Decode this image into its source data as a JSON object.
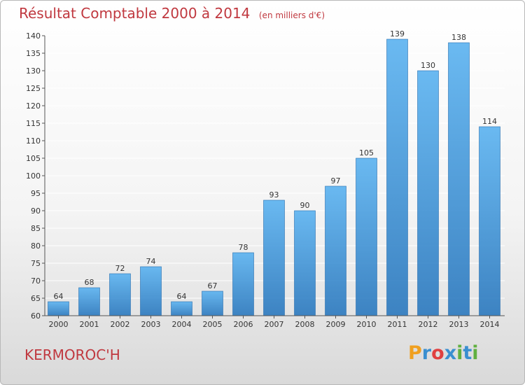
{
  "chart_data": {
    "type": "bar",
    "title": "Résultat Comptable 2000 à 2014",
    "subtitle": "(en milliers d'€)",
    "categories": [
      "2000",
      "2001",
      "2002",
      "2003",
      "2004",
      "2005",
      "2006",
      "2007",
      "2008",
      "2009",
      "2010",
      "2011",
      "2012",
      "2013",
      "2014"
    ],
    "values": [
      64,
      68,
      72,
      74,
      64,
      67,
      78,
      93,
      90,
      97,
      105,
      139,
      130,
      138,
      114
    ],
    "ylim": [
      60,
      140
    ],
    "yticks": [
      60,
      65,
      70,
      75,
      80,
      85,
      90,
      95,
      100,
      105,
      110,
      115,
      120,
      125,
      130,
      135,
      140
    ],
    "grid": true,
    "bar_color": "#3f95d8"
  },
  "commune": "KERMOROC'H",
  "logo": "Proxiti"
}
